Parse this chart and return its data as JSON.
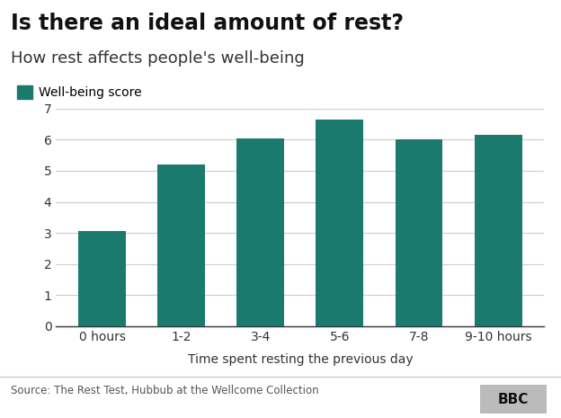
{
  "title": "Is there an ideal amount of rest?",
  "subtitle": "How rest affects people's well-being",
  "legend_label": "Well-being score",
  "xlabel": "Time spent resting the previous day",
  "ylabel": "",
  "categories": [
    "0 hours",
    "1-2",
    "3-4",
    "5-6",
    "7-8",
    "9-10 hours"
  ],
  "values": [
    3.05,
    5.2,
    6.05,
    6.65,
    6.0,
    6.15
  ],
  "bar_color": "#1a7a6e",
  "ylim": [
    0,
    7
  ],
  "yticks": [
    0,
    1,
    2,
    3,
    4,
    5,
    6,
    7
  ],
  "background_color": "#ffffff",
  "title_fontsize": 17,
  "subtitle_fontsize": 13,
  "source_text": "Source: The Rest Test, Hubbub at the Wellcome Collection",
  "bbc_label": "BBC",
  "footer_bg": "#bbbbbb"
}
